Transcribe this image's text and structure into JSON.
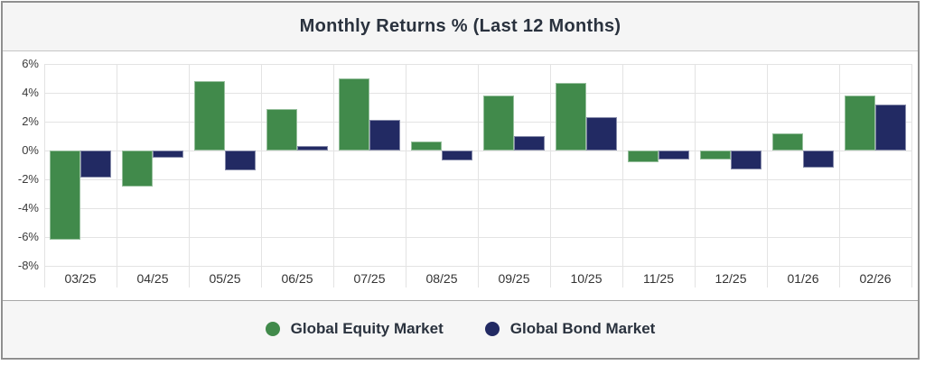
{
  "header": {
    "title": "Monthly Returns % (Last 12 Months)"
  },
  "colors": {
    "equity_green": "#418A4B",
    "bond_navy": "#222A63",
    "grid": "#E3E3E3",
    "axis_text": "#3B3B3B",
    "title_text": "#2A323E",
    "card_border": "#909090",
    "title_band_bg": "#F5F5F5",
    "legend_band_bg": "#F6F6F6"
  },
  "chart_data": {
    "type": "bar",
    "title": "Monthly Returns % (Last 12 Months)",
    "categories": [
      "03/25",
      "04/25",
      "05/25",
      "06/25",
      "07/25",
      "08/25",
      "09/25",
      "10/25",
      "11/25",
      "12/25",
      "01/26",
      "02/26"
    ],
    "series": [
      {
        "name": "Global Equity Market",
        "color": "#418A4B",
        "values": [
          -6.2,
          -2.5,
          4.8,
          2.9,
          5.0,
          0.6,
          3.8,
          4.7,
          -0.8,
          -0.6,
          1.2,
          3.8
        ]
      },
      {
        "name": "Global Bond Market",
        "color": "#222A63",
        "values": [
          -1.9,
          -0.5,
          -1.4,
          0.3,
          2.1,
          -0.7,
          1.0,
          2.3,
          -0.6,
          -1.3,
          -1.2,
          3.2
        ]
      }
    ],
    "xlabel": "",
    "ylabel": "",
    "ylim": [
      -8,
      6
    ],
    "yticks": [
      6,
      4,
      2,
      0,
      -2,
      -4,
      -6,
      -8
    ],
    "ytick_suffix": "%",
    "grid": true,
    "legend_position": "bottom"
  }
}
